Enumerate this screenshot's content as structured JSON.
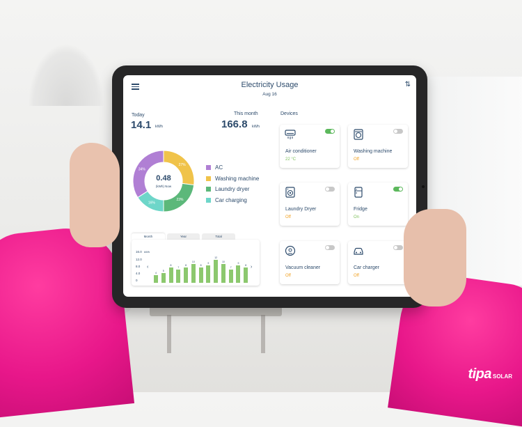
{
  "header": {
    "title": "Electricity Usage",
    "date": "Aug 16"
  },
  "stats": {
    "today": {
      "label": "Today",
      "value": "14.1",
      "unit": "kWh"
    },
    "month": {
      "label": "This month",
      "value": "166.8",
      "unit": "kWh"
    }
  },
  "donut": {
    "center_value": "0.48",
    "center_label": "(kWh) Now",
    "segments": [
      {
        "name": "AC",
        "percent": 34,
        "label": "34%",
        "color": "#b07fd4"
      },
      {
        "name": "Washing machine",
        "percent": 27,
        "label": "27%",
        "color": "#f0c34a"
      },
      {
        "name": "Laundry dryer",
        "percent": 23,
        "label": "23%",
        "color": "#5cb87a"
      },
      {
        "name": "Car charging",
        "percent": 16,
        "label": "16%",
        "color": "#6ed6c9"
      }
    ]
  },
  "usage_chart": {
    "tabs": [
      "Month",
      "Year",
      "Total"
    ],
    "active_tab": "Month",
    "y_unit": "kWh",
    "y_ticks": [
      "16.0",
      "12.0",
      "8.0",
      "4.0",
      "0"
    ],
    "prev": "‹",
    "next": "›"
  },
  "chart_data": {
    "type": "bar",
    "values": [
      4,
      5,
      8,
      7,
      8,
      10,
      8,
      9,
      12,
      10,
      7,
      9,
      8
    ],
    "labels": [
      "4",
      "5",
      "8",
      "7",
      "8",
      "10",
      "8",
      "9",
      "12",
      "10",
      "7",
      "9",
      "8"
    ],
    "ylim": [
      0,
      16
    ],
    "color": "#8cc86e"
  },
  "devices": {
    "title": "Devices",
    "items": [
      {
        "name": "Air conditioner",
        "status": "22 °C",
        "on": true,
        "status_color": "#7cbf5a",
        "icon": "air-conditioner-icon"
      },
      {
        "name": "Washing machine",
        "status": "Off",
        "on": false,
        "status_color": "#f0a020",
        "icon": "washing-machine-icon"
      },
      {
        "name": "Laundry Dryer",
        "status": "Off",
        "on": false,
        "status_color": "#f0a020",
        "icon": "laundry-dryer-icon"
      },
      {
        "name": "Fridge",
        "status": "On",
        "on": true,
        "status_color": "#7cbf5a",
        "icon": "fridge-icon"
      },
      {
        "name": "Vacuum cleaner",
        "status": "Off",
        "on": false,
        "status_color": "#f0a020",
        "icon": "vacuum-cleaner-icon"
      },
      {
        "name": "Car charger",
        "status": "Off",
        "on": false,
        "status_color": "#f0a020",
        "icon": "car-charger-icon"
      }
    ]
  },
  "brand": {
    "name": "tipa",
    "sub": "SOLAR"
  }
}
